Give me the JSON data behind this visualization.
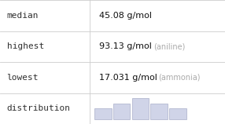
{
  "rows": [
    {
      "label": "median",
      "value": "45.08 g/mol",
      "note": ""
    },
    {
      "label": "highest",
      "value": "93.13 g/mol",
      "note": "(aniline)"
    },
    {
      "label": "lowest",
      "value": "17.031 g/mol",
      "note": "(ammonia)"
    },
    {
      "label": "distribution",
      "value": "",
      "note": ""
    }
  ],
  "hist_bars": [
    2,
    3,
    4,
    3,
    2
  ],
  "hist_color": "#d0d4e8",
  "hist_edge_color": "#a8aec8",
  "background_color": "#ffffff",
  "line_color": "#cccccc",
  "label_color": "#303030",
  "value_color": "#111111",
  "note_color": "#aaaaaa",
  "label_font": "monospace",
  "value_fontsize": 8,
  "label_fontsize": 8,
  "note_fontsize": 7,
  "col_split": 0.4
}
